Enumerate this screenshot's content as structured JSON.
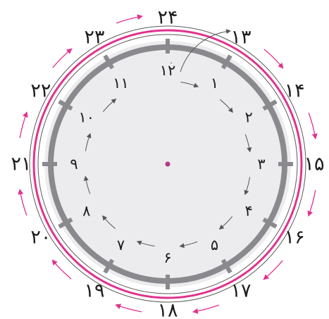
{
  "clock": {
    "inner_hours": [
      "۱",
      "۲",
      "۳",
      "۴",
      "۵",
      "۶",
      "۷",
      "۸",
      "۹",
      "۱۰",
      "۱۱",
      "۱۲"
    ],
    "outer_hours": [
      "۱۳",
      "۱۴",
      "۱۵",
      "۱۶",
      "۱۷",
      "۱۸",
      "۱۹",
      "۲۰",
      "۲۱",
      "۲۲",
      "۲۳",
      "۲۴"
    ],
    "start_mark": "۰",
    "colors": {
      "face": "#ececee",
      "rim": "#8a8a8e",
      "pink": "#e0338f",
      "arrow_gray": "#555555",
      "center": "#b23a82"
    }
  }
}
